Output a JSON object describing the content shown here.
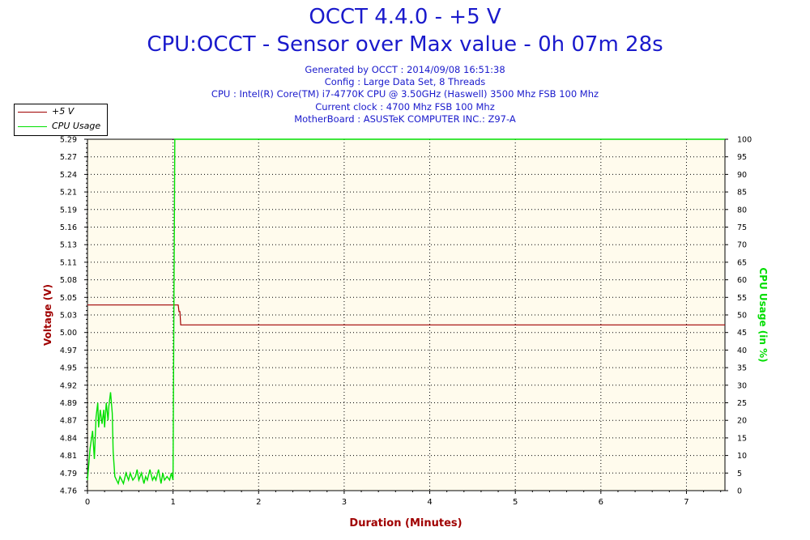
{
  "header": {
    "title": "OCCT 4.4.0 - +5 V",
    "subtitle": "CPU:OCCT - Sensor over Max value - 0h 07m 28s"
  },
  "info_lines": [
    "Generated by OCCT : 2014/09/08 16:51:38",
    "Config : Large Data Set, 8 Threads",
    "CPU : Intel(R) Core(TM) i7-4770K CPU @ 3.50GHz (Haswell) 3500 Mhz FSB 100 Mhz",
    "Current clock : 4700 Mhz FSB 100 Mhz",
    "MotherBoard : ASUSTeK COMPUTER INC.: Z97-A"
  ],
  "legend": [
    {
      "label": "+5 V",
      "color": "#a00000"
    },
    {
      "label": "CPU Usage",
      "color": "#00e000"
    }
  ],
  "chart_data": {
    "type": "line",
    "xlabel": "Duration (Minutes)",
    "ylabel": "Voltage (V)",
    "y2label": "CPU Usage (in %)",
    "xlim": [
      0,
      7.45
    ],
    "ylim": [
      4.76,
      5.29
    ],
    "y2lim": [
      0,
      100
    ],
    "x_ticks": [
      "0",
      "1",
      "2",
      "3",
      "4",
      "5",
      "6",
      "7"
    ],
    "y_ticks": [
      "4.76",
      "4.79",
      "4.81",
      "4.84",
      "4.87",
      "4.89",
      "4.92",
      "4.95",
      "4.97",
      "5.00",
      "5.03",
      "5.05",
      "5.08",
      "5.11",
      "5.13",
      "5.16",
      "5.19",
      "5.21",
      "5.24",
      "5.27",
      "5.29"
    ],
    "y2_ticks": [
      "0",
      "5",
      "10",
      "15",
      "20",
      "25",
      "30",
      "35",
      "40",
      "45",
      "50",
      "55",
      "60",
      "65",
      "70",
      "75",
      "80",
      "85",
      "90",
      "95",
      "100"
    ],
    "grid": true,
    "legend_position": "top-left",
    "series": [
      {
        "name": "+5 V",
        "axis": "left",
        "color": "#a00000",
        "x": [
          0,
          1.05,
          1.06,
          1.07,
          1.08,
          1.09,
          1.1,
          7.45
        ],
        "y": [
          5.04,
          5.04,
          5.04,
          5.03,
          5.03,
          5.01,
          5.01,
          5.01
        ]
      },
      {
        "name": "CPU Usage",
        "axis": "right",
        "color": "#00e000",
        "x": [
          0,
          0.03,
          0.06,
          0.08,
          0.1,
          0.12,
          0.13,
          0.15,
          0.17,
          0.19,
          0.2,
          0.22,
          0.24,
          0.25,
          0.27,
          0.29,
          0.3,
          0.32,
          0.34,
          0.36,
          0.38,
          0.4,
          0.42,
          0.45,
          0.48,
          0.5,
          0.53,
          0.56,
          0.58,
          0.6,
          0.63,
          0.66,
          0.68,
          0.7,
          0.73,
          0.76,
          0.78,
          0.8,
          0.83,
          0.86,
          0.88,
          0.9,
          0.93,
          0.96,
          0.98,
          1.0,
          1.02,
          1.05,
          7.45
        ],
        "y": [
          3,
          12,
          17,
          9,
          21,
          25,
          18,
          23,
          19,
          23,
          18,
          25,
          20,
          24,
          28,
          22,
          11,
          4,
          3,
          2,
          4,
          3,
          2,
          5,
          3,
          5,
          3,
          4,
          6,
          3,
          5,
          2,
          4,
          3,
          6,
          3,
          4,
          3,
          6,
          2,
          5,
          3,
          4,
          3,
          5,
          3,
          100,
          100,
          100
        ]
      }
    ]
  }
}
